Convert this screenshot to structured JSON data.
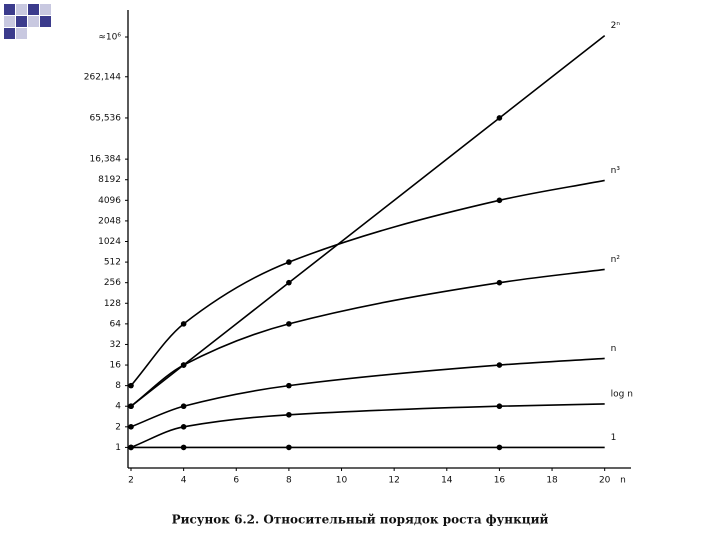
{
  "chart_data": {
    "type": "line",
    "caption": "Рисунок 6.2. Относительный порядок роста функций",
    "xlabel": "n",
    "yscale": "log2",
    "xlim": [
      2,
      21
    ],
    "xticks": [
      2,
      4,
      6,
      8,
      10,
      12,
      14,
      16,
      18,
      20
    ],
    "ylim": [
      0.5,
      2097152
    ],
    "yticks": [
      1,
      2,
      4,
      8,
      16,
      32,
      64,
      128,
      256,
      512,
      1024,
      2048,
      4096,
      8192,
      {
        "value": 16384,
        "label": "16,384"
      },
      {
        "value": 65536,
        "label": "65,536"
      },
      {
        "value": 262144,
        "label": "262,144"
      },
      {
        "value": 1000000,
        "label": "≈10⁶"
      }
    ],
    "x": [
      2,
      4,
      8,
      16,
      20
    ],
    "series": [
      {
        "name": "2ⁿ",
        "color": "#000000",
        "values": [
          4,
          16,
          256,
          65536,
          1048576
        ]
      },
      {
        "name": "n³",
        "color": "#000000",
        "values": [
          8,
          64,
          512,
          4096,
          8000
        ]
      },
      {
        "name": "n²",
        "color": "#000000",
        "values": [
          4,
          16,
          64,
          256,
          400
        ]
      },
      {
        "name": "n",
        "color": "#000000",
        "values": [
          2,
          4,
          8,
          16,
          20
        ]
      },
      {
        "name": "log n",
        "color": "#000000",
        "values": [
          1,
          2,
          3,
          4,
          4.32
        ]
      },
      {
        "name": "1",
        "color": "#000000",
        "values": [
          1,
          1,
          1,
          1,
          1
        ]
      }
    ]
  }
}
